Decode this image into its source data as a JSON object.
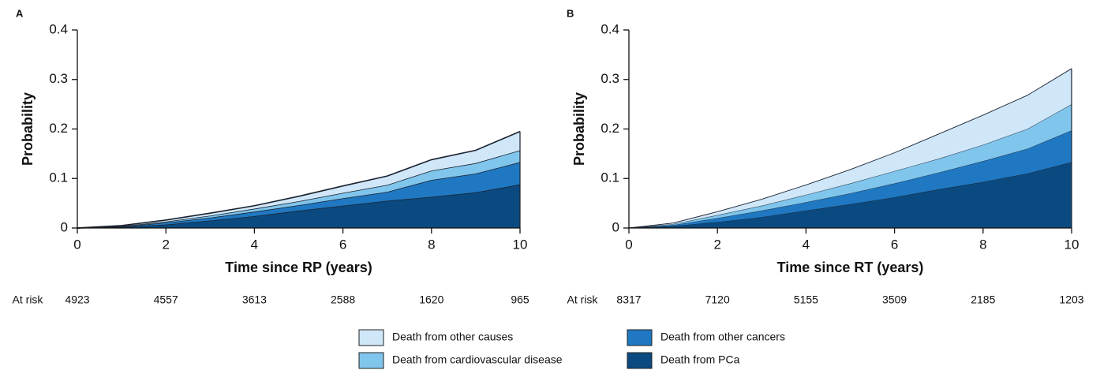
{
  "legend": [
    {
      "name": "Death from PCa",
      "color": "#0b4a80"
    },
    {
      "name": "Death from other cancers",
      "color": "#1f78c1"
    },
    {
      "name": "Death from cardiovascular disease",
      "color": "#80c5ec"
    },
    {
      "name": "Death from other causes",
      "color": "#cfe7f8"
    }
  ],
  "chart_data": [
    {
      "type": "stacked_area",
      "panel": "A",
      "x_label": "Time since RP (years)",
      "y_label": "Probability",
      "x": [
        0,
        1,
        2,
        3,
        4,
        5,
        6,
        7,
        8,
        9,
        10
      ],
      "series": [
        {
          "values": [
            0,
            0.002,
            0.007,
            0.015,
            0.024,
            0.035,
            0.045,
            0.055,
            0.063,
            0.072,
            0.088
          ]
        },
        {
          "values": [
            0,
            0.001,
            0.004,
            0.006,
            0.009,
            0.011,
            0.015,
            0.018,
            0.034,
            0.038,
            0.045
          ]
        },
        {
          "values": [
            0,
            0.001,
            0.002,
            0.004,
            0.006,
            0.008,
            0.011,
            0.014,
            0.019,
            0.021,
            0.024
          ]
        },
        {
          "values": [
            0,
            0.001,
            0.003,
            0.005,
            0.006,
            0.01,
            0.014,
            0.018,
            0.022,
            0.026,
            0.038
          ]
        }
      ],
      "xlim": [
        0,
        10
      ],
      "xticks": [
        0,
        2,
        4,
        6,
        8,
        10
      ],
      "ylim": [
        0,
        0.4
      ],
      "yticks": [
        0,
        0.1,
        0.2,
        0.3,
        0.4
      ],
      "at_risk": {
        "label": "At risk",
        "values": [
          4923,
          4557,
          3613,
          2588,
          1620,
          965
        ]
      }
    },
    {
      "type": "stacked_area",
      "panel": "B",
      "x_label": "Time since RT (years)",
      "y_label": "Probability",
      "x": [
        0,
        1,
        2,
        3,
        4,
        5,
        6,
        7,
        8,
        9,
        10
      ],
      "series": [
        {
          "values": [
            0,
            0.004,
            0.012,
            0.022,
            0.035,
            0.048,
            0.062,
            0.078,
            0.093,
            0.11,
            0.133
          ]
        },
        {
          "values": [
            0,
            0.002,
            0.008,
            0.013,
            0.017,
            0.022,
            0.028,
            0.034,
            0.042,
            0.05,
            0.064
          ]
        },
        {
          "values": [
            0,
            0.002,
            0.006,
            0.01,
            0.015,
            0.02,
            0.025,
            0.028,
            0.033,
            0.04,
            0.053
          ]
        },
        {
          "values": [
            0,
            0.002,
            0.007,
            0.013,
            0.02,
            0.028,
            0.037,
            0.05,
            0.06,
            0.068,
            0.072
          ]
        }
      ],
      "xlim": [
        0,
        10
      ],
      "xticks": [
        0,
        2,
        4,
        6,
        8,
        10
      ],
      "ylim": [
        0,
        0.4
      ],
      "yticks": [
        0,
        0.1,
        0.2,
        0.3,
        0.4
      ],
      "at_risk": {
        "label": "At risk",
        "values": [
          8317,
          7120,
          5155,
          3509,
          2185,
          1203
        ]
      }
    }
  ]
}
